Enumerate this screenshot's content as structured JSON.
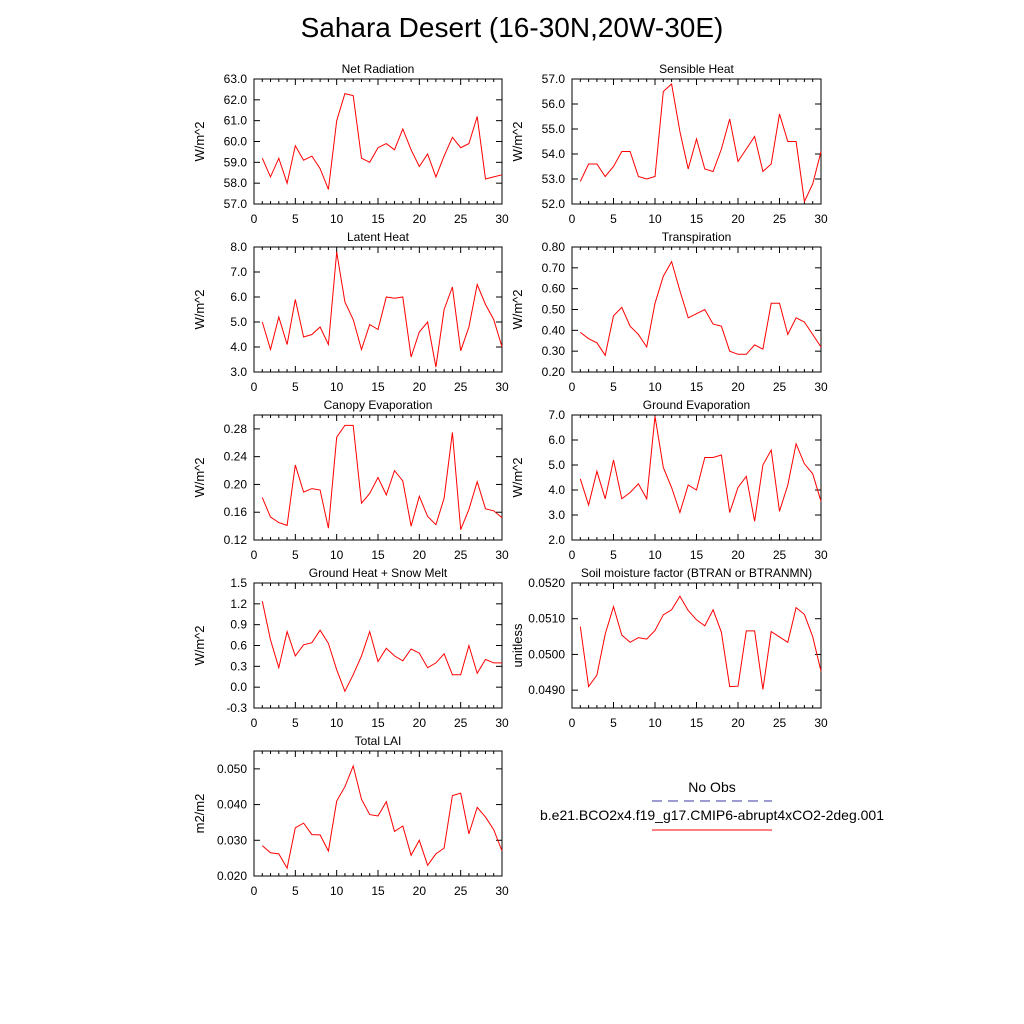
{
  "title": "Sahara Desert (16-30N,20W-30E)",
  "legend": {
    "obs_label": "No Obs",
    "obs_color": "#3a3aa0",
    "model_label": "b.e21.BCO2x4.f19_g17.CMIP6-abrupt4xCO2-2deg.001",
    "model_color": "#ff0000"
  },
  "chart_data": [
    {
      "type": "line",
      "title": "Net Radiation",
      "xlabel": "",
      "ylabel": "W/m^2",
      "xlim": [
        0,
        30
      ],
      "ylim": [
        57.0,
        63.0
      ],
      "xticks": [
        "0",
        "5",
        "10",
        "15",
        "20",
        "25",
        "30"
      ],
      "yticks": [
        "57.0",
        "58.0",
        "59.0",
        "60.0",
        "61.0",
        "62.0",
        "63.0"
      ],
      "x": [
        1,
        2,
        3,
        4,
        5,
        6,
        7,
        8,
        9,
        10,
        11,
        12,
        13,
        14,
        15,
        16,
        17,
        18,
        19,
        20,
        21,
        22,
        23,
        24,
        25,
        26,
        27,
        28,
        29,
        30
      ],
      "series": [
        {
          "values": [
            59.2,
            58.3,
            59.2,
            58.0,
            59.8,
            59.1,
            59.3,
            58.7,
            57.7,
            61.0,
            62.3,
            62.2,
            59.2,
            59.0,
            59.7,
            59.9,
            59.6,
            60.6,
            59.6,
            58.8,
            59.4,
            58.3,
            59.3,
            60.2,
            59.7,
            59.9,
            61.2,
            58.2,
            58.3,
            58.4
          ]
        }
      ]
    },
    {
      "type": "line",
      "title": "Sensible Heat",
      "xlabel": "",
      "ylabel": "W/m^2",
      "xlim": [
        0,
        30
      ],
      "ylim": [
        52.0,
        57.0
      ],
      "xticks": [
        "0",
        "5",
        "10",
        "15",
        "20",
        "25",
        "30"
      ],
      "yticks": [
        "52.0",
        "53.0",
        "54.0",
        "55.0",
        "56.0",
        "57.0"
      ],
      "x": [
        1,
        2,
        3,
        4,
        5,
        6,
        7,
        8,
        9,
        10,
        11,
        12,
        13,
        14,
        15,
        16,
        17,
        18,
        19,
        20,
        21,
        22,
        23,
        24,
        25,
        26,
        27,
        28,
        29,
        30
      ],
      "series": [
        {
          "values": [
            52.9,
            53.6,
            53.6,
            53.1,
            53.5,
            54.1,
            54.1,
            53.1,
            53.0,
            53.1,
            56.5,
            56.8,
            54.9,
            53.4,
            54.6,
            53.4,
            53.3,
            54.2,
            55.4,
            53.7,
            54.2,
            54.7,
            53.3,
            53.6,
            55.6,
            54.5,
            54.5,
            52.1,
            52.8,
            54.1
          ]
        }
      ]
    },
    {
      "type": "line",
      "title": "Latent Heat",
      "xlabel": "",
      "ylabel": "W/m^2",
      "xlim": [
        0,
        30
      ],
      "ylim": [
        3.0,
        8.0
      ],
      "xticks": [
        "0",
        "5",
        "10",
        "15",
        "20",
        "25",
        "30"
      ],
      "yticks": [
        "3.0",
        "4.0",
        "5.0",
        "6.0",
        "7.0",
        "8.0"
      ],
      "x": [
        1,
        2,
        3,
        4,
        5,
        6,
        7,
        8,
        9,
        10,
        11,
        12,
        13,
        14,
        15,
        16,
        17,
        18,
        19,
        20,
        21,
        22,
        23,
        24,
        25,
        26,
        27,
        28,
        29,
        30
      ],
      "series": [
        {
          "values": [
            5.0,
            3.9,
            5.2,
            4.1,
            5.9,
            4.4,
            4.5,
            4.8,
            4.1,
            7.8,
            5.8,
            5.1,
            3.9,
            4.9,
            4.7,
            6.0,
            5.95,
            6.0,
            3.6,
            4.6,
            5.0,
            3.2,
            5.5,
            6.4,
            3.85,
            4.8,
            6.5,
            5.7,
            5.1,
            4.0
          ]
        }
      ]
    },
    {
      "type": "line",
      "title": "Transpiration",
      "xlabel": "",
      "ylabel": "W/m^2",
      "xlim": [
        0,
        30
      ],
      "ylim": [
        0.2,
        0.8
      ],
      "xticks": [
        "0",
        "5",
        "10",
        "15",
        "20",
        "25",
        "30"
      ],
      "yticks": [
        "0.20",
        "0.30",
        "0.40",
        "0.50",
        "0.60",
        "0.70",
        "0.80"
      ],
      "x": [
        1,
        2,
        3,
        4,
        5,
        6,
        7,
        8,
        9,
        10,
        11,
        12,
        13,
        14,
        15,
        16,
        17,
        18,
        19,
        20,
        21,
        22,
        23,
        24,
        25,
        26,
        27,
        28,
        29,
        30
      ],
      "series": [
        {
          "values": [
            0.39,
            0.36,
            0.34,
            0.28,
            0.47,
            0.51,
            0.42,
            0.38,
            0.32,
            0.53,
            0.66,
            0.73,
            0.59,
            0.46,
            0.48,
            0.5,
            0.43,
            0.42,
            0.3,
            0.285,
            0.285,
            0.33,
            0.31,
            0.53,
            0.53,
            0.38,
            0.46,
            0.44,
            0.38,
            0.32
          ]
        }
      ]
    },
    {
      "type": "line",
      "title": "Canopy Evaporation",
      "xlabel": "",
      "ylabel": "W/m^2",
      "xlim": [
        0,
        30
      ],
      "ylim": [
        0.12,
        0.3
      ],
      "xticks": [
        "0",
        "5",
        "10",
        "15",
        "20",
        "25",
        "30"
      ],
      "yticks": [
        "0.12",
        "0.16",
        "0.20",
        "0.24",
        "0.28"
      ],
      "x": [
        1,
        2,
        3,
        4,
        5,
        6,
        7,
        8,
        9,
        10,
        11,
        12,
        13,
        14,
        15,
        16,
        17,
        18,
        19,
        20,
        21,
        22,
        23,
        24,
        25,
        26,
        27,
        28,
        29,
        30
      ],
      "series": [
        {
          "values": [
            0.181,
            0.153,
            0.145,
            0.141,
            0.228,
            0.189,
            0.194,
            0.192,
            0.137,
            0.268,
            0.285,
            0.285,
            0.173,
            0.187,
            0.21,
            0.185,
            0.22,
            0.205,
            0.14,
            0.183,
            0.154,
            0.142,
            0.18,
            0.275,
            0.135,
            0.164,
            0.204,
            0.165,
            0.162,
            0.152
          ]
        }
      ]
    },
    {
      "type": "line",
      "title": "Ground Evaporation",
      "xlabel": "",
      "ylabel": "W/m^2",
      "xlim": [
        0,
        30
      ],
      "ylim": [
        2.0,
        7.0
      ],
      "xticks": [
        "0",
        "5",
        "10",
        "15",
        "20",
        "25",
        "30"
      ],
      "yticks": [
        "2.0",
        "3.0",
        "4.0",
        "5.0",
        "6.0",
        "7.0"
      ],
      "x": [
        1,
        2,
        3,
        4,
        5,
        6,
        7,
        8,
        9,
        10,
        11,
        12,
        13,
        14,
        15,
        16,
        17,
        18,
        19,
        20,
        21,
        22,
        23,
        24,
        25,
        26,
        27,
        28,
        29,
        30
      ],
      "series": [
        {
          "values": [
            4.45,
            3.4,
            4.75,
            3.65,
            5.2,
            3.65,
            3.9,
            4.25,
            3.65,
            6.95,
            4.9,
            4.1,
            3.1,
            4.2,
            4.0,
            5.3,
            5.3,
            5.4,
            3.1,
            4.1,
            4.55,
            2.75,
            5.0,
            5.6,
            3.15,
            4.2,
            5.85,
            5.05,
            4.65,
            3.55
          ]
        }
      ]
    },
    {
      "type": "line",
      "title": "Ground Heat + Snow Melt",
      "xlabel": "",
      "ylabel": "W/m^2",
      "xlim": [
        0,
        30
      ],
      "ylim": [
        -0.3,
        1.5
      ],
      "xticks": [
        "0",
        "5",
        "10",
        "15",
        "20",
        "25",
        "30"
      ],
      "yticks": [
        "-0.3",
        "0.0",
        "0.3",
        "0.6",
        "0.9",
        "1.2",
        "1.5"
      ],
      "x": [
        1,
        2,
        3,
        4,
        5,
        6,
        7,
        8,
        9,
        10,
        11,
        12,
        13,
        14,
        15,
        16,
        17,
        18,
        19,
        20,
        21,
        22,
        23,
        24,
        25,
        26,
        27,
        28,
        29,
        30
      ],
      "series": [
        {
          "values": [
            1.24,
            0.68,
            0.28,
            0.8,
            0.45,
            0.61,
            0.64,
            0.82,
            0.63,
            0.25,
            -0.06,
            0.18,
            0.45,
            0.8,
            0.37,
            0.56,
            0.45,
            0.38,
            0.55,
            0.49,
            0.28,
            0.35,
            0.48,
            0.18,
            0.18,
            0.6,
            0.2,
            0.4,
            0.35,
            0.35
          ]
        }
      ]
    },
    {
      "type": "line",
      "title": "Soil moisture factor (BTRAN or BTRANMN)",
      "xlabel": "",
      "ylabel": "unitless",
      "xlim": [
        0,
        30
      ],
      "ylim": [
        0.0485,
        0.052
      ],
      "xticks": [
        "0",
        "5",
        "10",
        "15",
        "20",
        "25",
        "30"
      ],
      "yticks": [
        "0.0490",
        "0.0500",
        "0.0510",
        "0.0520"
      ],
      "x": [
        1,
        2,
        3,
        4,
        5,
        6,
        7,
        8,
        9,
        10,
        11,
        12,
        13,
        14,
        15,
        16,
        17,
        18,
        19,
        20,
        21,
        22,
        23,
        24,
        25,
        26,
        27,
        28,
        29,
        30
      ],
      "series": [
        {
          "values": [
            0.05078,
            0.0491,
            0.04942,
            0.05057,
            0.05134,
            0.05054,
            0.05034,
            0.05047,
            0.05043,
            0.05067,
            0.05111,
            0.05125,
            0.05163,
            0.05123,
            0.05097,
            0.0508,
            0.05125,
            0.05062,
            0.0491,
            0.04911,
            0.05066,
            0.05066,
            0.04902,
            0.05064,
            0.05049,
            0.05034,
            0.05131,
            0.05112,
            0.0505,
            0.04953
          ]
        }
      ]
    },
    {
      "type": "line",
      "title": "Total LAI",
      "xlabel": "",
      "ylabel": "m2/m2",
      "xlim": [
        0,
        30
      ],
      "ylim": [
        0.02,
        0.055
      ],
      "xticks": [
        "0",
        "5",
        "10",
        "15",
        "20",
        "25",
        "30"
      ],
      "yticks": [
        "0.020",
        "0.030",
        "0.040",
        "0.050"
      ],
      "x": [
        1,
        2,
        3,
        4,
        5,
        6,
        7,
        8,
        9,
        10,
        11,
        12,
        13,
        14,
        15,
        16,
        17,
        18,
        19,
        20,
        21,
        22,
        23,
        24,
        25,
        26,
        27,
        28,
        29,
        30
      ],
      "series": [
        {
          "values": [
            0.0285,
            0.0265,
            0.0262,
            0.0222,
            0.0335,
            0.0348,
            0.0316,
            0.0315,
            0.027,
            0.041,
            0.045,
            0.0508,
            0.0415,
            0.0372,
            0.0368,
            0.0408,
            0.0325,
            0.034,
            0.0258,
            0.03,
            0.023,
            0.0262,
            0.0278,
            0.0425,
            0.0432,
            0.0318,
            0.0392,
            0.0365,
            0.033,
            0.027
          ]
        }
      ]
    }
  ]
}
